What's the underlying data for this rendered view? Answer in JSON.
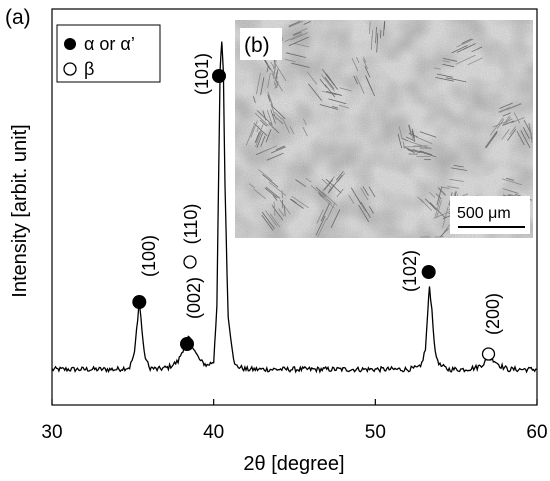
{
  "chart_data": {
    "type": "line",
    "panel_label_a": "(a)",
    "panel_label_b": "(b)",
    "xlabel": "2θ [degree]",
    "ylabel": "Intensity [arbit. unit]",
    "xlim": [
      30,
      60
    ],
    "ylim": [
      0,
      100
    ],
    "xticks": [
      30,
      40,
      50,
      60
    ],
    "y_tick_labels_shown": false,
    "grid": false,
    "legend": {
      "placement": "top-left",
      "entries": [
        {
          "marker": "filled-circle",
          "label": "α or α’"
        },
        {
          "marker": "open-circle",
          "label": "β"
        }
      ]
    },
    "series": [
      {
        "x": [
          30,
          32,
          34,
          34.8,
          35.1,
          35.3,
          35.4,
          35.5,
          35.7,
          36.0,
          36.5,
          37.2,
          37.8,
          38.1,
          38.3,
          38.5,
          38.7,
          38.9,
          39.2,
          39.6,
          40.0,
          40.2,
          40.3,
          40.4,
          40.5,
          40.6,
          40.7,
          40.9,
          41.3,
          42,
          44,
          46,
          48,
          50,
          52,
          52.8,
          53.1,
          53.25,
          53.35,
          53.5,
          53.7,
          54.0,
          54.5,
          55.5,
          56.3,
          56.7,
          57.0,
          57.3,
          57.7,
          58.2,
          59,
          60
        ],
        "y": [
          9,
          9,
          9,
          9.5,
          13,
          22,
          26,
          22,
          13,
          9.5,
          9,
          9.5,
          11,
          14,
          16,
          17,
          15,
          13,
          11,
          10,
          11,
          25,
          55,
          84,
          92,
          84,
          55,
          22,
          10,
          9,
          9,
          9,
          9,
          9,
          9,
          9.5,
          14,
          24,
          30,
          24,
          13,
          10,
          9,
          9,
          9.5,
          10.5,
          12,
          11.5,
          10,
          9,
          9,
          9
        ]
      }
    ],
    "peaks": [
      {
        "label": "(100)",
        "x": 35.4,
        "phase": "α or α’",
        "marker": "filled-circle"
      },
      {
        "label": "(002)",
        "x": 38.5,
        "phase": "α or α’",
        "marker": "filled-circle"
      },
      {
        "label": "(110)",
        "x": 39.0,
        "phase": "β",
        "marker": "open-circle"
      },
      {
        "label": "(101)",
        "x": 40.5,
        "phase": "α or α’",
        "marker": "filled-circle"
      },
      {
        "label": "(102)",
        "x": 53.3,
        "phase": "α or α’",
        "marker": "filled-circle"
      },
      {
        "label": "(200)",
        "x": 57.0,
        "phase": "β",
        "marker": "open-circle"
      }
    ],
    "inset": {
      "content": "micrograph",
      "scale_bar_label": "500 μm"
    }
  }
}
